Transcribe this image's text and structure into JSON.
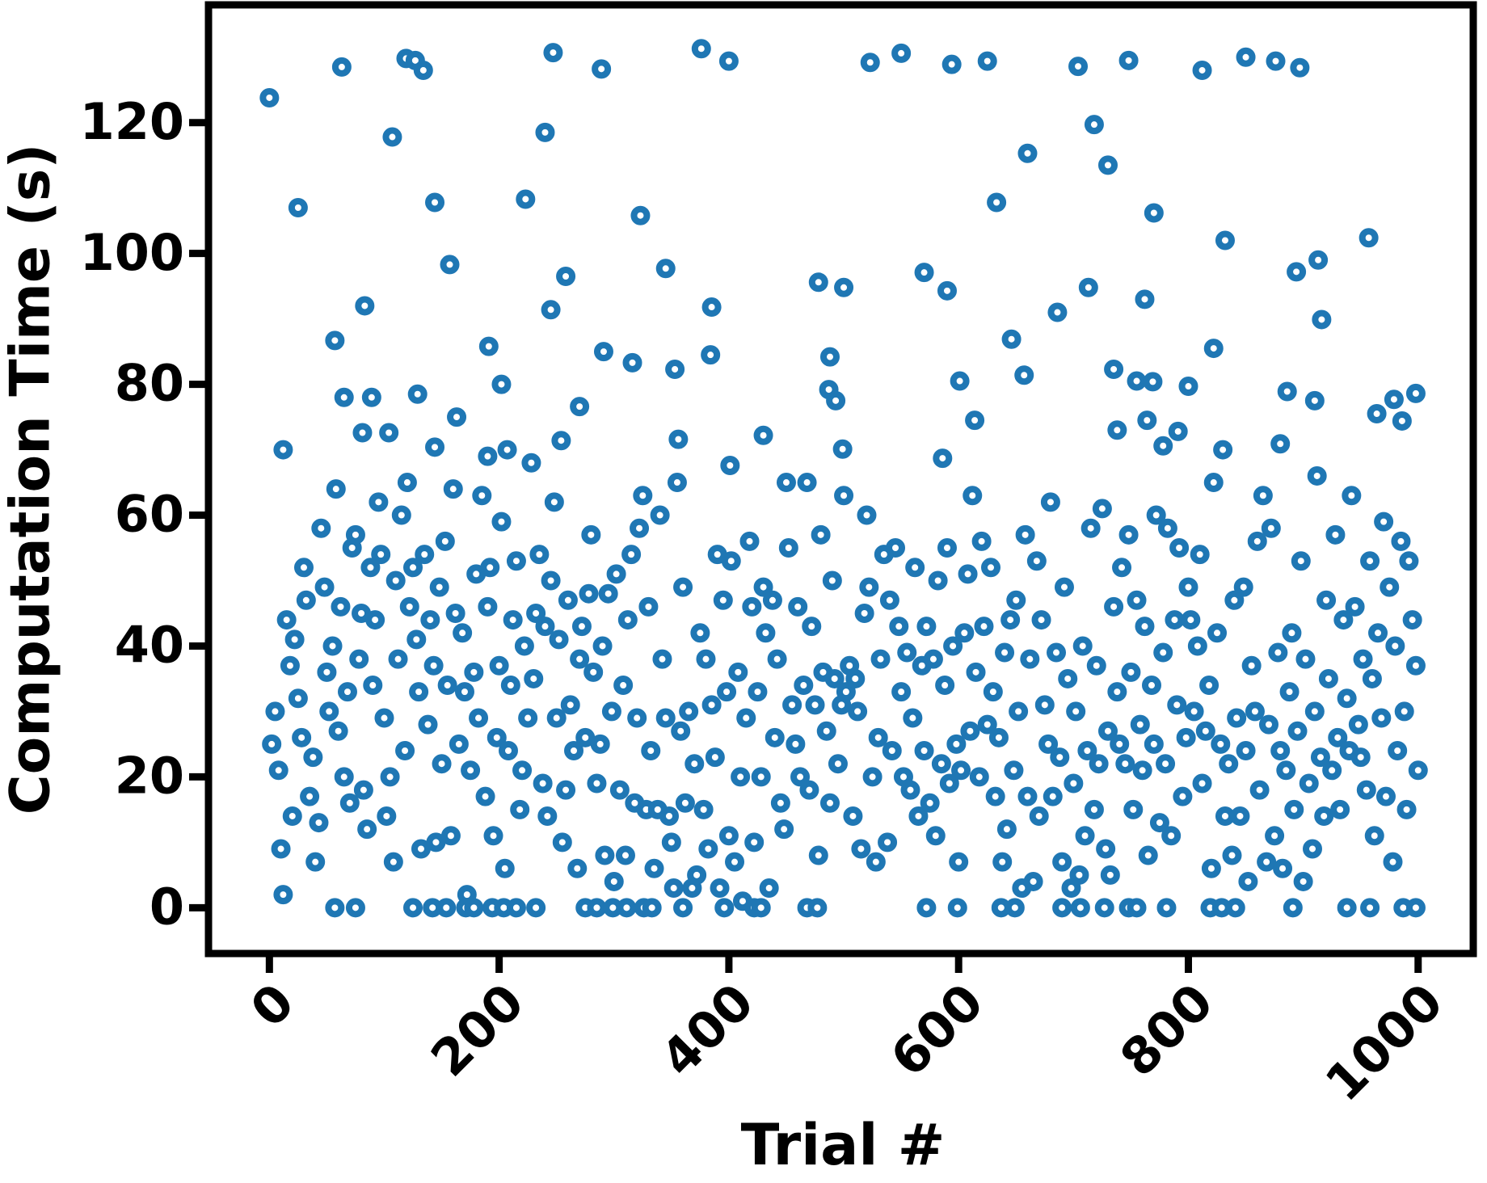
{
  "chart_data": {
    "type": "scatter",
    "x_label": "Trial #",
    "y_label": "Computation Time (s)",
    "xlim": [
      -53,
      1048
    ],
    "ylim": [
      -7,
      138
    ],
    "xticks": [
      0,
      200,
      400,
      600,
      800,
      1000
    ],
    "yticks": [
      0,
      20,
      40,
      60,
      80,
      100,
      120
    ],
    "grid": false,
    "series": [
      {
        "color": "#1f77b4",
        "x": [
          0,
          12,
          25,
          63,
          57,
          83,
          65,
          89,
          81,
          107,
          104,
          119,
          127,
          134,
          129,
          144,
          144,
          157,
          163,
          191,
          202,
          190,
          223,
          207,
          240,
          247,
          245,
          258,
          270,
          254,
          289,
          291,
          316,
          323,
          345,
          353,
          376,
          400,
          385,
          384,
          356,
          401,
          430,
          478,
          500,
          488,
          487,
          493,
          499,
          523,
          550,
          570,
          590,
          594,
          625,
          601,
          614,
          586,
          633,
          646,
          660,
          657,
          704,
          686,
          713,
          718,
          730,
          735,
          748,
          738,
          762,
          770,
          755,
          769,
          764,
          778,
          791,
          800,
          812,
          822,
          832,
          850,
          876,
          897,
          886,
          880,
          894,
          913,
          916,
          910,
          957,
          979,
          998,
          964,
          986,
          57,
          75,
          125,
          142,
          154,
          171,
          178,
          194,
          204,
          215,
          232,
          275,
          285,
          299,
          311,
          326,
          333,
          360,
          396,
          422,
          428,
          468,
          477,
          572,
          599,
          637,
          649,
          690,
          706,
          727,
          748,
          755,
          781,
          819,
          829,
          841,
          891,
          938,
          958,
          987,
          998,
          2,
          5,
          8,
          10,
          12,
          15,
          18,
          20,
          22,
          25,
          28,
          30,
          32,
          35,
          38,
          40,
          43,
          45,
          48,
          50,
          52,
          55,
          58,
          60,
          62,
          65,
          68,
          70,
          72,
          75,
          78,
          80,
          82,
          85,
          88,
          90,
          92,
          95,
          97,
          100,
          102,
          105,
          108,
          110,
          112,
          115,
          118,
          120,
          122,
          125,
          128,
          130,
          132,
          135,
          138,
          140,
          143,
          145,
          148,
          150,
          153,
          155,
          158,
          160,
          162,
          165,
          168,
          170,
          172,
          175,
          178,
          180,
          182,
          185,
          188,
          190,
          192,
          195,
          198,
          200,
          202,
          205,
          208,
          210,
          212,
          215,
          218,
          220,
          222,
          225,
          228,
          230,
          232,
          235,
          238,
          240,
          242,
          245,
          248,
          250,
          252,
          255,
          258,
          260,
          262,
          265,
          268,
          270,
          272,
          275,
          278,
          280,
          282,
          285,
          288,
          290,
          292,
          295,
          298,
          300,
          302,
          305,
          308,
          310,
          312,
          315,
          318,
          320,
          322,
          325,
          328,
          330,
          332,
          335,
          338,
          340,
          342,
          345,
          348,
          350,
          352,
          355,
          358,
          360,
          362,
          365,
          368,
          370,
          372,
          375,
          378,
          380,
          382,
          385,
          388,
          390,
          392,
          395,
          398,
          400,
          402,
          405,
          408,
          410,
          412,
          415,
          418,
          420,
          422,
          425,
          428,
          430,
          432,
          435,
          438,
          440,
          442,
          445,
          448,
          450,
          452,
          455,
          458,
          460,
          462,
          465,
          468,
          470,
          472,
          475,
          478,
          480,
          482,
          485,
          488,
          490,
          492,
          495,
          498,
          500,
          502,
          505,
          508,
          510,
          512,
          515,
          518,
          520,
          522,
          525,
          528,
          530,
          532,
          535,
          538,
          540,
          542,
          545,
          548,
          550,
          552,
          555,
          558,
          560,
          562,
          565,
          568,
          570,
          572,
          575,
          578,
          580,
          582,
          585,
          588,
          590,
          592,
          595,
          598,
          600,
          602,
          605,
          608,
          610,
          612,
          615,
          618,
          620,
          622,
          625,
          628,
          630,
          632,
          635,
          638,
          640,
          642,
          645,
          648,
          650,
          652,
          655,
          658,
          660,
          662,
          665,
          668,
          670,
          672,
          675,
          678,
          680,
          682,
          685,
          688,
          690,
          692,
          695,
          698,
          700,
          702,
          705,
          708,
          710,
          712,
          715,
          718,
          720,
          722,
          725,
          728,
          730,
          732,
          735,
          738,
          740,
          742,
          745,
          748,
          750,
          752,
          755,
          758,
          760,
          762,
          765,
          768,
          770,
          772,
          775,
          778,
          780,
          782,
          785,
          788,
          790,
          792,
          795,
          798,
          800,
          802,
          805,
          808,
          810,
          812,
          815,
          818,
          820,
          822,
          825,
          828,
          830,
          832,
          835,
          838,
          840,
          842,
          845,
          848,
          850,
          852,
          855,
          858,
          860,
          862,
          865,
          868,
          870,
          872,
          875,
          878,
          880,
          882,
          885,
          888,
          890,
          892,
          895,
          898,
          900,
          902,
          905,
          908,
          910,
          912,
          915,
          918,
          920,
          922,
          925,
          928,
          930,
          932,
          935,
          938,
          940,
          942,
          945,
          948,
          950,
          952,
          955,
          958,
          960,
          962,
          965,
          968,
          970,
          972,
          975,
          978,
          980,
          982,
          985,
          988,
          990,
          992,
          995,
          998,
          1000
        ],
        "values": [
          123.8,
          70,
          107,
          128.5,
          86.7,
          92,
          78,
          78,
          72.6,
          117.8,
          72.6,
          129.8,
          129.5,
          128,
          78.5,
          107.8,
          70.4,
          98.3,
          75,
          85.8,
          80,
          69,
          108.3,
          70,
          118.5,
          130.7,
          91.4,
          96.5,
          76.6,
          71.4,
          128.2,
          85,
          83.3,
          105.8,
          97.7,
          82.3,
          131.3,
          129.4,
          91.8,
          84.5,
          71.6,
          67.6,
          72.2,
          95.6,
          94.8,
          84.2,
          79.2,
          77.5,
          70.1,
          129.2,
          130.6,
          97.1,
          94.3,
          128.9,
          129.4,
          80.5,
          74.5,
          68.7,
          107.8,
          86.9,
          115.3,
          81.4,
          128.6,
          91,
          94.8,
          119.7,
          113.5,
          82.3,
          129.5,
          73,
          93,
          106.2,
          80.5,
          80.4,
          74.5,
          70.6,
          72.8,
          79.7,
          128,
          85.5,
          102,
          130,
          129.4,
          128.4,
          78.9,
          70.9,
          97.2,
          99,
          89.9,
          77.5,
          102.4,
          77.7,
          78.6,
          75.5,
          74.4,
          0,
          0,
          0,
          0,
          0,
          0,
          0,
          0,
          0,
          0,
          0,
          0,
          0,
          0,
          0,
          0,
          0,
          0,
          0,
          0,
          0,
          0,
          0,
          0,
          0,
          0,
          0,
          0,
          0,
          0,
          0,
          0,
          0,
          0,
          0,
          0,
          0,
          0,
          0,
          0,
          0,
          25,
          30,
          21,
          9,
          2,
          44,
          37,
          14,
          41,
          32,
          26,
          52,
          47,
          17,
          23,
          7,
          13,
          58,
          49,
          36,
          30,
          40,
          64,
          27,
          46,
          20,
          33,
          16,
          55,
          57,
          38,
          45,
          18,
          12,
          52,
          34,
          44,
          62,
          54,
          29,
          14,
          20,
          7,
          50,
          38,
          60,
          24,
          65,
          46,
          52,
          41,
          33,
          9,
          54,
          28,
          44,
          37,
          10,
          49,
          22,
          56,
          34,
          11,
          64,
          45,
          25,
          42,
          33,
          2,
          21,
          36,
          51,
          29,
          63,
          17,
          46,
          52,
          11,
          26,
          37,
          59,
          6,
          24,
          34,
          44,
          53,
          15,
          21,
          40,
          29,
          68,
          35,
          45,
          54,
          19,
          43,
          14,
          50,
          62,
          29,
          41,
          10,
          18,
          47,
          31,
          24,
          6,
          38,
          43,
          26,
          48,
          57,
          36,
          19,
          25,
          40,
          8,
          48,
          30,
          4,
          51,
          18,
          34,
          8,
          44,
          54,
          16,
          29,
          58,
          63,
          15,
          46,
          24,
          6,
          15,
          60,
          38,
          29,
          14,
          10,
          3,
          65,
          27,
          49,
          16,
          30,
          3,
          22,
          5,
          42,
          15,
          38,
          9,
          31,
          23,
          54,
          3,
          47,
          33,
          11,
          53,
          7,
          36,
          20,
          1,
          29,
          56,
          46,
          10,
          33,
          20,
          49,
          42,
          3,
          47,
          26,
          38,
          16,
          12,
          65,
          55,
          31,
          25,
          46,
          20,
          34,
          65,
          18,
          43,
          31,
          8,
          57,
          36,
          27,
          16,
          50,
          35,
          22,
          31,
          63,
          33,
          37,
          14,
          35,
          30,
          9,
          45,
          60,
          49,
          20,
          7,
          26,
          38,
          54,
          10,
          47,
          24,
          55,
          43,
          33,
          20,
          39,
          18,
          29,
          52,
          14,
          37,
          24,
          43,
          16,
          38,
          11,
          50,
          22,
          34,
          55,
          19,
          40,
          25,
          7,
          21,
          42,
          51,
          27,
          63,
          36,
          20,
          56,
          43,
          28,
          52,
          33,
          17,
          26,
          7,
          39,
          12,
          44,
          21,
          47,
          30,
          3,
          57,
          17,
          38,
          4,
          53,
          14,
          44,
          31,
          25,
          62,
          17,
          39,
          23,
          7,
          49,
          35,
          3,
          19,
          30,
          5,
          40,
          11,
          24,
          58,
          15,
          37,
          22,
          61,
          9,
          27,
          5,
          46,
          33,
          25,
          52,
          22,
          57,
          36,
          15,
          47,
          28,
          21,
          43,
          8,
          34,
          25,
          60,
          13,
          39,
          22,
          58,
          11,
          44,
          31,
          55,
          17,
          26,
          49,
          44,
          30,
          40,
          54,
          19,
          27,
          34,
          6,
          65,
          42,
          25,
          70,
          14,
          22,
          8,
          47,
          29,
          14,
          49,
          24,
          4,
          37,
          30,
          56,
          18,
          63,
          7,
          28,
          58,
          11,
          39,
          24,
          6,
          21,
          33,
          42,
          15,
          27,
          53,
          4,
          38,
          19,
          9,
          30,
          66,
          23,
          14,
          47,
          35,
          21,
          57,
          26,
          15,
          44,
          32,
          24,
          63,
          46,
          28,
          23,
          38,
          18,
          53,
          35,
          11,
          42,
          29,
          59,
          17,
          49,
          7,
          40,
          24,
          56,
          30,
          15,
          53,
          44,
          37,
          21
        ]
      }
    ]
  }
}
